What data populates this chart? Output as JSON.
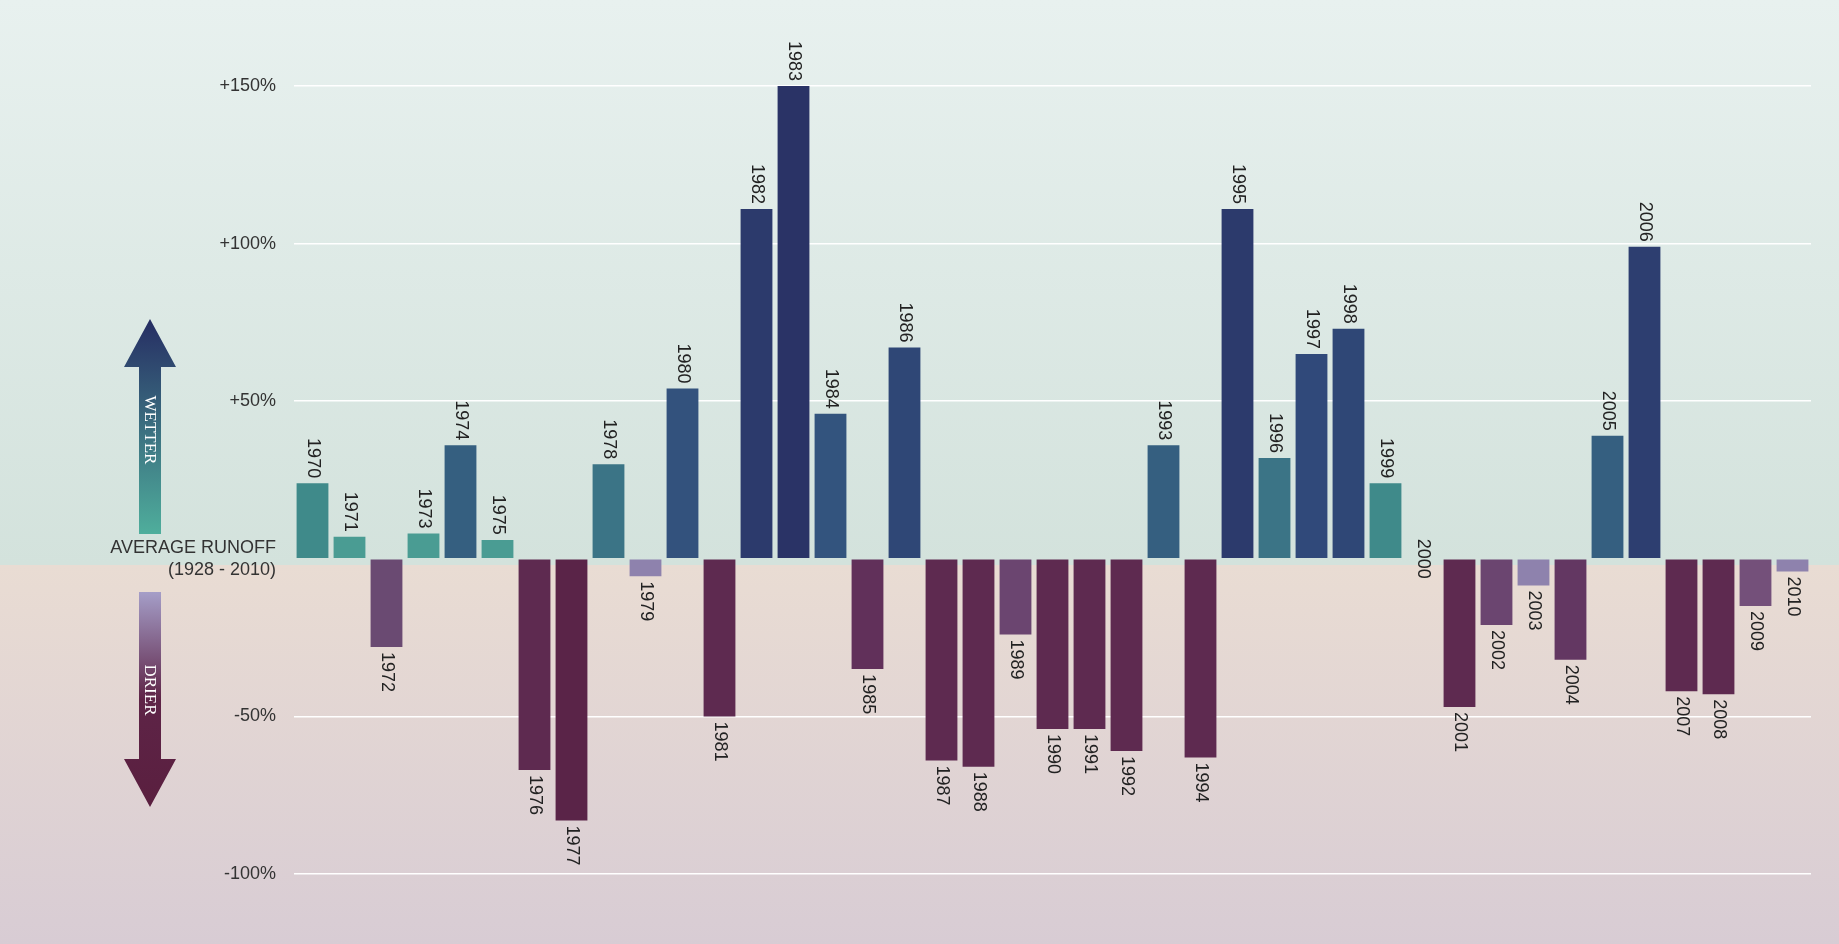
{
  "chart_data": {
    "type": "bar",
    "categories": [
      "1970",
      "1971",
      "1972",
      "1973",
      "1974",
      "1975",
      "1976",
      "1977",
      "1978",
      "1979",
      "1980",
      "1981",
      "1982",
      "1983",
      "1984",
      "1985",
      "1986",
      "1987",
      "1988",
      "1989",
      "1990",
      "1991",
      "1992",
      "1993",
      "1994",
      "1995",
      "1996",
      "1997",
      "1998",
      "1999",
      "2000",
      "2001",
      "2002",
      "2003",
      "2004",
      "2005",
      "2006",
      "2007",
      "2008",
      "2009",
      "2010"
    ],
    "values": [
      24,
      7,
      -28,
      8,
      36,
      6,
      -67,
      -83,
      30,
      -5.5,
      54,
      -50,
      111,
      150,
      46,
      -35,
      67,
      -64,
      -66,
      -24,
      -54,
      -54,
      -61,
      36,
      -63,
      111,
      32,
      65,
      73,
      24,
      0,
      -47,
      -21,
      -8.5,
      -32,
      39,
      99,
      -42,
      -43,
      -15,
      -4
    ],
    "colors": [
      "#3f8a8a",
      "#4a9c93",
      "#6a4a72",
      "#4a9c93",
      "#355f80",
      "#4a9c93",
      "#5e2a50",
      "#5a2448",
      "#3b7486",
      "#8e82ad",
      "#33527d",
      "#5e2a50",
      "#2c3a6c",
      "#2a3366",
      "#33547e",
      "#61305a",
      "#2f4776",
      "#5e2a50",
      "#5e2a50",
      "#6b4570",
      "#5e2a50",
      "#5e2a50",
      "#5e2a50",
      "#355f80",
      "#5e2a50",
      "#2c3a6c",
      "#3b7486",
      "#30497a",
      "#2f4776",
      "#3f8a8a",
      "#4fa99a",
      "#5e2a50",
      "#6b4570",
      "#8e82ad",
      "#633762",
      "#355f80",
      "#2d3e70",
      "#5e2a50",
      "#5e2a50",
      "#74507a",
      "#8e82ad"
    ],
    "ylim": [
      -100,
      150
    ],
    "yticks": [
      {
        "value": 150,
        "label": "+150%"
      },
      {
        "value": 100,
        "label": "+100%"
      },
      {
        "value": 50,
        "label": "+50%"
      },
      {
        "value": 0,
        "label": "AVERAGE RUNOFF\n(1928 - 2010)"
      },
      {
        "value": -50,
        "label": "-50%"
      },
      {
        "value": -100,
        "label": "-100%"
      }
    ],
    "grid": "y",
    "annotations": [
      "WETTER",
      "DRIER"
    ]
  }
}
